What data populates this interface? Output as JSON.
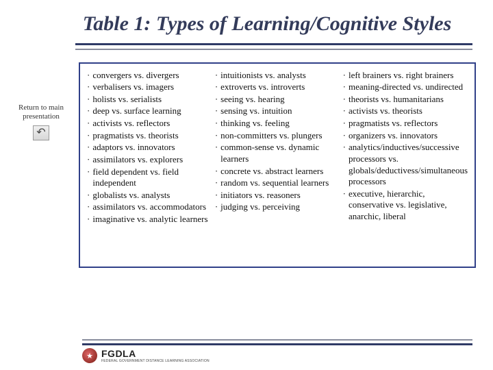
{
  "title": "Table 1: Types of Learning/Cognitive Styles",
  "side": {
    "line1": "Return to main",
    "line2": "presentation",
    "icon_glyph": "↶"
  },
  "table": {
    "type": "table",
    "border_color": "#2f3f88",
    "text_color": "#111111",
    "font_family": "Times New Roman",
    "font_size_pt": 10,
    "bullet_glyph": "·",
    "columns": [
      {
        "items": [
          "convergers vs. divergers",
          "verbalisers vs. imagers",
          "holists vs. serialists",
          "deep vs. surface learning",
          "activists vs. reflectors",
          "pragmatists vs. theorists",
          "adaptors vs. innovators",
          "assimilators vs. explorers",
          "field dependent vs. field independent",
          "globalists vs. analysts",
          "assimilators vs. accommodators",
          "imaginative vs. analytic learners"
        ]
      },
      {
        "items": [
          "intuitionists vs. analysts",
          "extroverts vs. introverts",
          "seeing vs. hearing",
          "sensing vs. intuition",
          "thinking vs. feeling",
          "non-committers vs. plungers",
          "common-sense vs. dynamic learners",
          "concrete vs. abstract learners",
          "random vs. sequential learners",
          "initiators vs. reasoners",
          "judging vs. perceiving"
        ]
      },
      {
        "items": [
          "left brainers vs. right brainers",
          "meaning-directed vs. undirected",
          "theorists vs. humanitarians",
          "activists vs. theorists",
          "pragmatists vs. reflectors",
          "organizers vs. innovators",
          "analytics/inductives/successive processors vs. globals/deductivess/simultaneous processors",
          "executive, hierarchic, conservative vs. legislative, anarchic, liberal"
        ]
      }
    ]
  },
  "colors": {
    "title": "#333b5a",
    "rule_dark": "#2f3a66",
    "rule_light": "#888c9c",
    "background": "#ffffff"
  },
  "logo": {
    "text": "FGDLA",
    "sub": "FEDERAL GOVERNMENT DISTANCE LEARNING ASSOCIATION"
  }
}
